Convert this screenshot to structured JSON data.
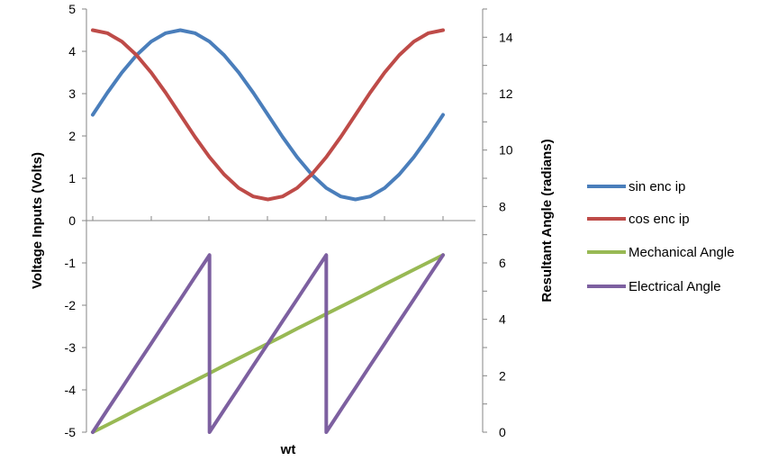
{
  "chart_data": {
    "type": "line",
    "xlabel": "wt",
    "ylabel_left": "Voltage Inputs (Volts)",
    "ylabel_right": "Resultant Angle (radians)",
    "ylim_left": [
      -5,
      5
    ],
    "ylim_right": [
      0,
      15
    ],
    "left_ticks": [
      "5",
      "4",
      "3",
      "2",
      "1",
      "0",
      "-1",
      "-2",
      "-3",
      "-4",
      "-5"
    ],
    "right_ticks": [
      "14",
      "12",
      "10",
      "8",
      "6",
      "4",
      "2",
      "0"
    ],
    "x_samples": 25,
    "legend_position": "right",
    "grid": false,
    "series": [
      {
        "name": "sin enc ip",
        "axis": "left",
        "color": "#4a7ebb",
        "values": [
          2.5,
          3.02,
          3.5,
          3.91,
          4.23,
          4.43,
          4.5,
          4.43,
          4.23,
          3.91,
          3.5,
          3.02,
          2.5,
          1.98,
          1.5,
          1.09,
          0.77,
          0.57,
          0.5,
          0.57,
          0.77,
          1.09,
          1.5,
          1.98,
          2.5
        ]
      },
      {
        "name": "cos enc ip",
        "axis": "left",
        "color": "#be4b48",
        "values": [
          4.5,
          4.43,
          4.23,
          3.91,
          3.5,
          3.02,
          2.5,
          1.98,
          1.5,
          1.09,
          0.77,
          0.57,
          0.5,
          0.57,
          0.77,
          1.09,
          1.5,
          1.98,
          2.5,
          3.02,
          3.5,
          3.91,
          4.23,
          4.43,
          4.5
        ]
      },
      {
        "name": "Mechanical Angle",
        "axis": "right",
        "color": "#98b954",
        "values": [
          0,
          0.26,
          0.52,
          0.79,
          1.05,
          1.31,
          1.57,
          1.83,
          2.09,
          2.36,
          2.62,
          2.88,
          3.14,
          3.4,
          3.67,
          3.93,
          4.19,
          4.45,
          4.71,
          4.97,
          5.24,
          5.5,
          5.76,
          6.02,
          6.28
        ]
      },
      {
        "name": "Electrical Angle",
        "axis": "right",
        "color": "#7d60a0",
        "values": [
          0,
          0.79,
          1.57,
          2.36,
          3.14,
          3.93,
          4.71,
          5.5,
          6.28,
          0,
          0.79,
          1.57,
          2.36,
          3.14,
          3.93,
          4.71,
          5.5,
          6.28,
          0,
          0.79,
          1.57,
          2.36,
          3.14,
          3.93,
          4.71,
          5.5,
          6.28
        ],
        "x": [
          0,
          1,
          2,
          3,
          4,
          5,
          6,
          7,
          8,
          8,
          9,
          10,
          11,
          12,
          13,
          14,
          15,
          16,
          16,
          17,
          18,
          19,
          20,
          21,
          22,
          23,
          24
        ]
      }
    ]
  }
}
